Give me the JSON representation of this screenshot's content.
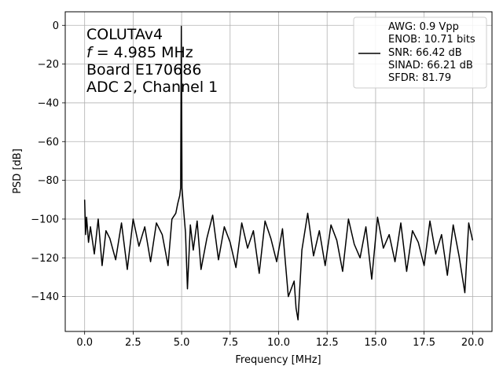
{
  "chart_data": {
    "type": "line",
    "xlabel": "Frequency [MHz]",
    "ylabel": "PSD [dB]",
    "xlim": [
      -1.0,
      21.0
    ],
    "ylim": [
      -158,
      7
    ],
    "xticks": [
      0.0,
      2.5,
      5.0,
      7.5,
      10.0,
      12.5,
      15.0,
      17.5,
      20.0
    ],
    "xtick_labels": [
      "0.0",
      "2.5",
      "5.0",
      "7.5",
      "10.0",
      "12.5",
      "15.0",
      "17.5",
      "20.0"
    ],
    "yticks": [
      0,
      -20,
      -40,
      -60,
      -80,
      -100,
      -120,
      -140
    ],
    "ytick_labels": [
      "0",
      "−20",
      "−40",
      "−60",
      "−80",
      "−100",
      "−120",
      "−140"
    ],
    "grid": true,
    "legend_position": "top-right",
    "line_color": "#000000",
    "annotation": {
      "lines": [
        "COLUTAv4",
        "= 4.985 MHz",
        "Board E170686",
        "ADC 2, Channel 1"
      ],
      "f_symbol": "f"
    },
    "legend": {
      "lines": [
        "AWG: 0.9 Vpp",
        "ENOB: 10.71 bits",
        "SNR: 66.42 dB",
        "SINAD: 66.21 dB",
        "SFDR: 81.79"
      ]
    },
    "series": [
      {
        "x": [
          0.0,
          0.05,
          0.1,
          0.2,
          0.3,
          0.5,
          0.7,
          0.9,
          1.1,
          1.3,
          1.6,
          1.9,
          2.2,
          2.5,
          2.8,
          3.1,
          3.4,
          3.7,
          4.0,
          4.3,
          4.5,
          4.7,
          4.8,
          4.9,
          4.95,
          4.985,
          5.02,
          5.05,
          5.1,
          5.2,
          5.3,
          5.45,
          5.6,
          5.8,
          6.0,
          6.3,
          6.6,
          6.9,
          7.2,
          7.5,
          7.8,
          8.1,
          8.4,
          8.7,
          9.0,
          9.3,
          9.6,
          9.9,
          10.2,
          10.5,
          10.8,
          10.9,
          11.0,
          11.2,
          11.5,
          11.8,
          12.1,
          12.4,
          12.7,
          13.0,
          13.3,
          13.6,
          13.9,
          14.2,
          14.5,
          14.8,
          15.1,
          15.4,
          15.7,
          16.0,
          16.3,
          16.6,
          16.9,
          17.2,
          17.5,
          17.8,
          18.1,
          18.4,
          18.7,
          19.0,
          19.3,
          19.6,
          19.8,
          20.0
        ],
        "y": [
          -90,
          -108,
          -99,
          -112,
          -104,
          -118,
          -100,
          -124,
          -106,
          -110,
          -121,
          -102,
          -126,
          -100,
          -114,
          -104,
          -122,
          -102,
          -108,
          -124,
          -100,
          -97,
          -92,
          -88,
          -84,
          -0.5,
          -84,
          -88,
          -95,
          -107,
          -136,
          -103,
          -116,
          -101,
          -126,
          -110,
          -98,
          -121,
          -104,
          -112,
          -125,
          -102,
          -115,
          -106,
          -128,
          -101,
          -110,
          -122,
          -105,
          -140,
          -132,
          -146,
          -152,
          -116,
          -97,
          -119,
          -106,
          -124,
          -103,
          -111,
          -127,
          -100,
          -113,
          -120,
          -104,
          -131,
          -99,
          -115,
          -108,
          -122,
          -102,
          -127,
          -106,
          -112,
          -124,
          -101,
          -118,
          -108,
          -129,
          -103,
          -119,
          -138,
          -102,
          -111
        ]
      }
    ]
  }
}
